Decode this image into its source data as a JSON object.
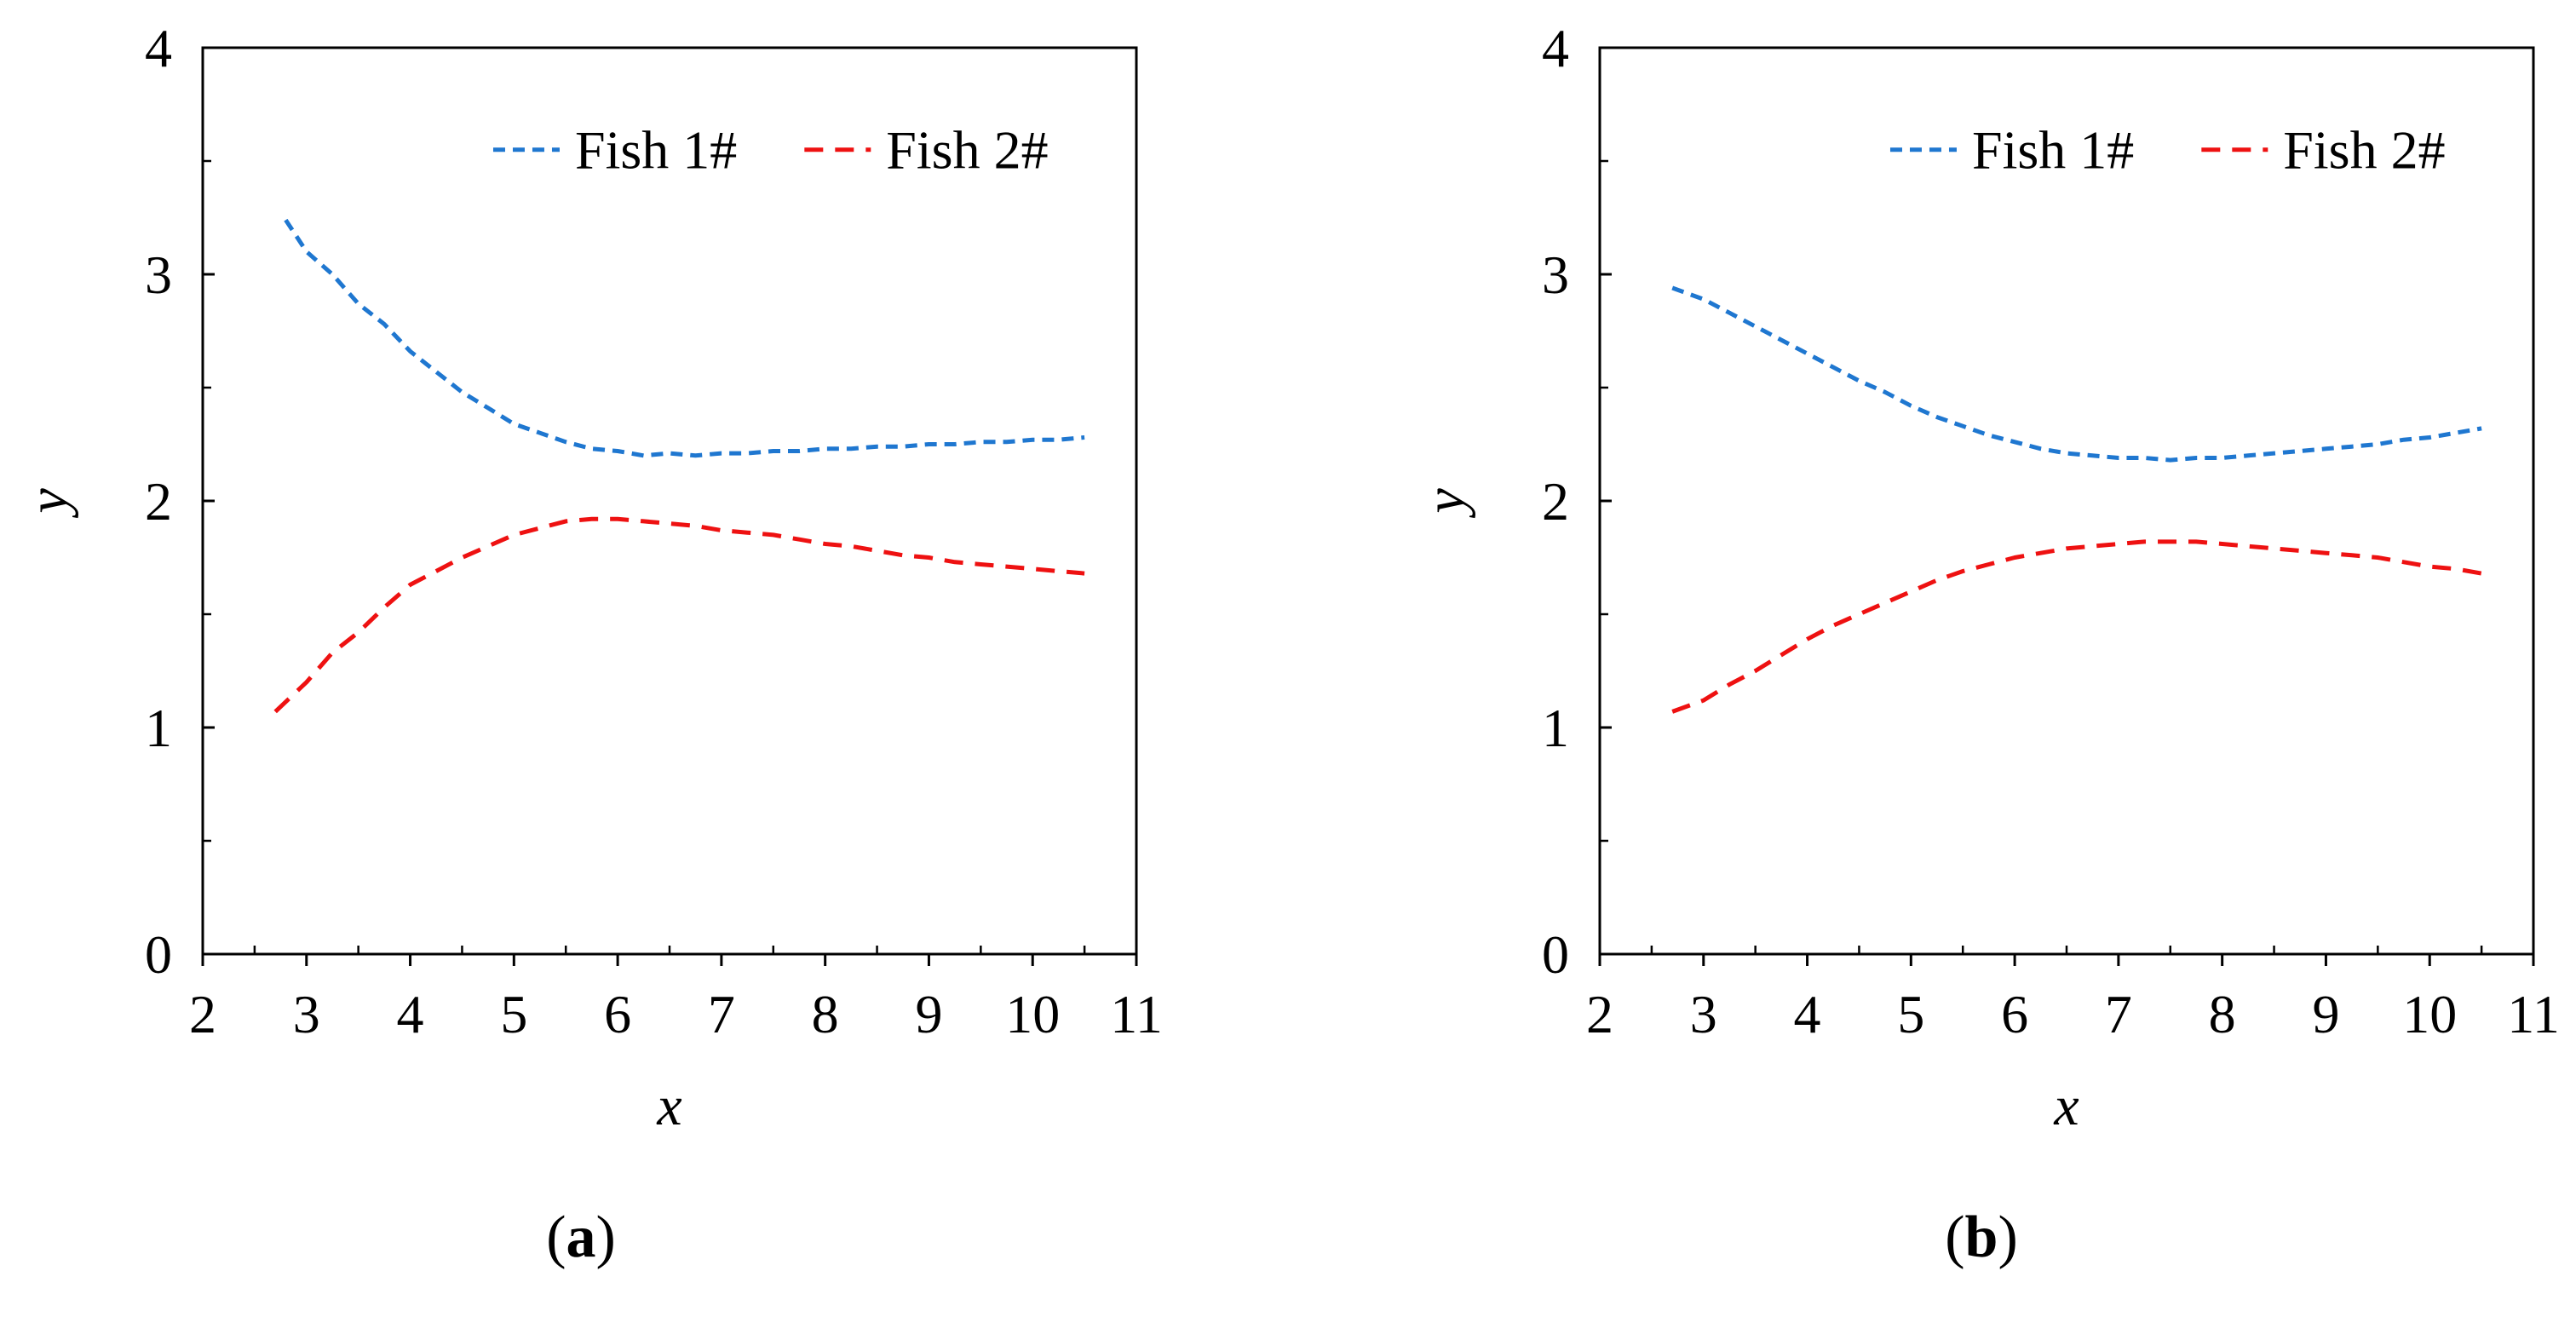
{
  "chart_data": [
    {
      "type": "line",
      "panel_label": "a",
      "xlabel": "x",
      "ylabel": "y",
      "xlim": [
        2,
        11
      ],
      "ylim": [
        0,
        4
      ],
      "xticks": [
        2,
        3,
        4,
        5,
        6,
        7,
        8,
        9,
        10,
        11
      ],
      "yticks": [
        0,
        1,
        2,
        3,
        4
      ],
      "legend": "top-right",
      "series": [
        {
          "name": "Fish 1#",
          "color": "#1f77d0",
          "style": "dashed",
          "x": [
            2.8,
            3.0,
            3.25,
            3.5,
            3.75,
            4.0,
            4.25,
            4.5,
            4.75,
            5.0,
            5.25,
            5.5,
            5.75,
            6.0,
            6.25,
            6.5,
            6.75,
            7.0,
            7.25,
            7.5,
            7.75,
            8.0,
            8.25,
            8.5,
            8.75,
            9.0,
            9.25,
            9.5,
            9.75,
            10.0,
            10.25,
            10.5
          ],
          "y": [
            3.24,
            3.1,
            3.0,
            2.87,
            2.78,
            2.66,
            2.57,
            2.48,
            2.41,
            2.34,
            2.3,
            2.26,
            2.23,
            2.22,
            2.2,
            2.21,
            2.2,
            2.21,
            2.21,
            2.22,
            2.22,
            2.23,
            2.23,
            2.24,
            2.24,
            2.25,
            2.25,
            2.26,
            2.26,
            2.27,
            2.27,
            2.28
          ]
        },
        {
          "name": "Fish 2#",
          "color": "#ee1111",
          "style": "dashed",
          "x": [
            2.7,
            3.0,
            3.25,
            3.5,
            3.75,
            4.0,
            4.25,
            4.5,
            4.75,
            5.0,
            5.25,
            5.5,
            5.75,
            6.0,
            6.25,
            6.5,
            6.75,
            7.0,
            7.25,
            7.5,
            7.75,
            8.0,
            8.25,
            8.5,
            8.75,
            9.0,
            9.25,
            9.5,
            9.75,
            10.0,
            10.25,
            10.5
          ],
          "y": [
            1.07,
            1.2,
            1.33,
            1.42,
            1.53,
            1.63,
            1.69,
            1.75,
            1.8,
            1.85,
            1.88,
            1.91,
            1.92,
            1.92,
            1.91,
            1.9,
            1.89,
            1.87,
            1.86,
            1.85,
            1.83,
            1.81,
            1.8,
            1.78,
            1.76,
            1.75,
            1.73,
            1.72,
            1.71,
            1.7,
            1.69,
            1.68
          ]
        }
      ]
    },
    {
      "type": "line",
      "panel_label": "b",
      "xlabel": "x",
      "ylabel": "y",
      "xlim": [
        2,
        11
      ],
      "ylim": [
        0,
        4
      ],
      "xticks": [
        2,
        3,
        4,
        5,
        6,
        7,
        8,
        9,
        10,
        11
      ],
      "yticks": [
        0,
        1,
        2,
        3,
        4
      ],
      "legend": "top-right",
      "series": [
        {
          "name": "Fish 1#",
          "color": "#1f77d0",
          "style": "dashed",
          "x": [
            2.7,
            3.0,
            3.25,
            3.5,
            3.75,
            4.0,
            4.25,
            4.5,
            4.75,
            5.0,
            5.25,
            5.5,
            5.75,
            6.0,
            6.25,
            6.5,
            6.75,
            7.0,
            7.25,
            7.5,
            7.75,
            8.0,
            8.25,
            8.5,
            8.75,
            9.0,
            9.25,
            9.5,
            9.75,
            10.0,
            10.25,
            10.5
          ],
          "y": [
            2.94,
            2.89,
            2.83,
            2.77,
            2.71,
            2.65,
            2.59,
            2.53,
            2.48,
            2.42,
            2.37,
            2.33,
            2.29,
            2.26,
            2.23,
            2.21,
            2.2,
            2.19,
            2.19,
            2.18,
            2.19,
            2.19,
            2.2,
            2.21,
            2.22,
            2.23,
            2.24,
            2.25,
            2.27,
            2.28,
            2.3,
            2.32
          ]
        },
        {
          "name": "Fish 2#",
          "color": "#ee1111",
          "style": "dashed",
          "x": [
            2.7,
            3.0,
            3.25,
            3.5,
            3.75,
            4.0,
            4.25,
            4.5,
            4.75,
            5.0,
            5.25,
            5.5,
            5.75,
            6.0,
            6.25,
            6.5,
            6.75,
            7.0,
            7.25,
            7.5,
            7.75,
            8.0,
            8.25,
            8.5,
            8.75,
            9.0,
            9.25,
            9.5,
            9.75,
            10.0,
            10.25,
            10.5
          ],
          "y": [
            1.07,
            1.12,
            1.19,
            1.25,
            1.32,
            1.39,
            1.45,
            1.5,
            1.55,
            1.6,
            1.65,
            1.69,
            1.72,
            1.75,
            1.77,
            1.79,
            1.8,
            1.81,
            1.82,
            1.82,
            1.82,
            1.81,
            1.8,
            1.79,
            1.78,
            1.77,
            1.76,
            1.75,
            1.73,
            1.71,
            1.7,
            1.68
          ]
        }
      ]
    }
  ]
}
